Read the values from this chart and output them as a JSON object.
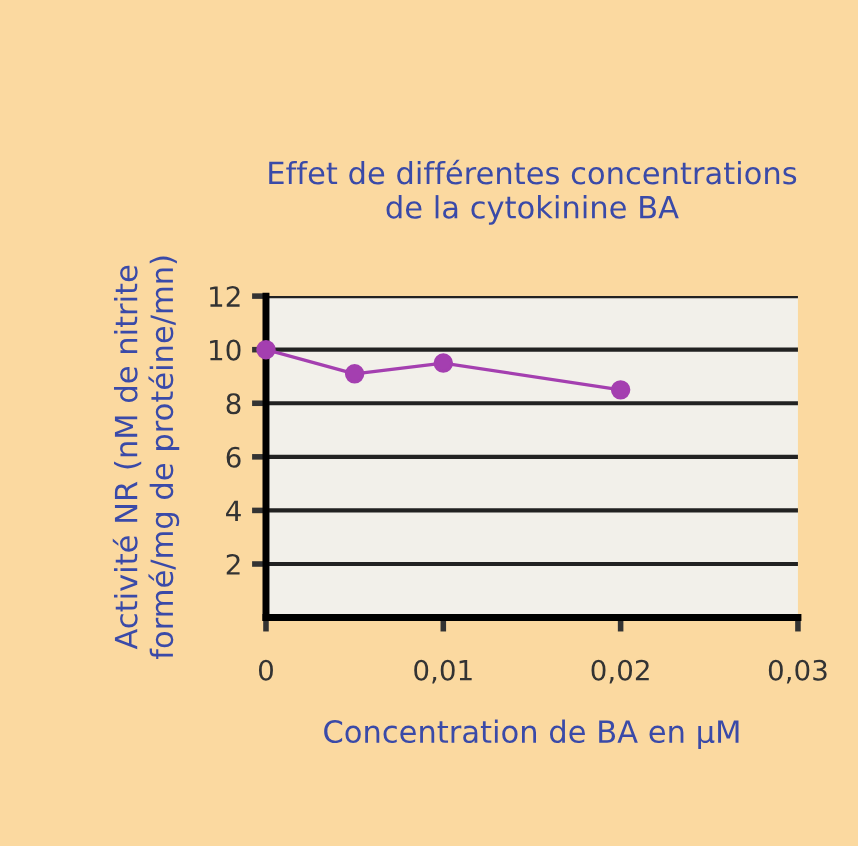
{
  "chart_data": {
    "type": "line",
    "title": "Effet de différentes concentrations\nde la cytokinine BA",
    "xlabel": "Concentration de BA en µM",
    "ylabel": "Activité NR (nM de nitrite\nformé/mg de protéine/mn)",
    "x": [
      0,
      0.005,
      0.01,
      0.02
    ],
    "series": [
      {
        "color": "#a43fb0",
        "values": [
          10,
          9.1,
          9.5,
          8.5
        ]
      }
    ],
    "xlim": [
      0,
      0.03
    ],
    "xticks": [
      {
        "value": 0,
        "label": "0"
      },
      {
        "value": 0.01,
        "label": "0,01"
      },
      {
        "value": 0.02,
        "label": "0,02"
      },
      {
        "value": 0.03,
        "label": "0,03"
      }
    ],
    "ylim": [
      0,
      12
    ],
    "yticks": [
      2,
      4,
      6,
      8,
      10,
      12
    ],
    "grid": "y",
    "marker": "circle",
    "line_style": "solid"
  }
}
